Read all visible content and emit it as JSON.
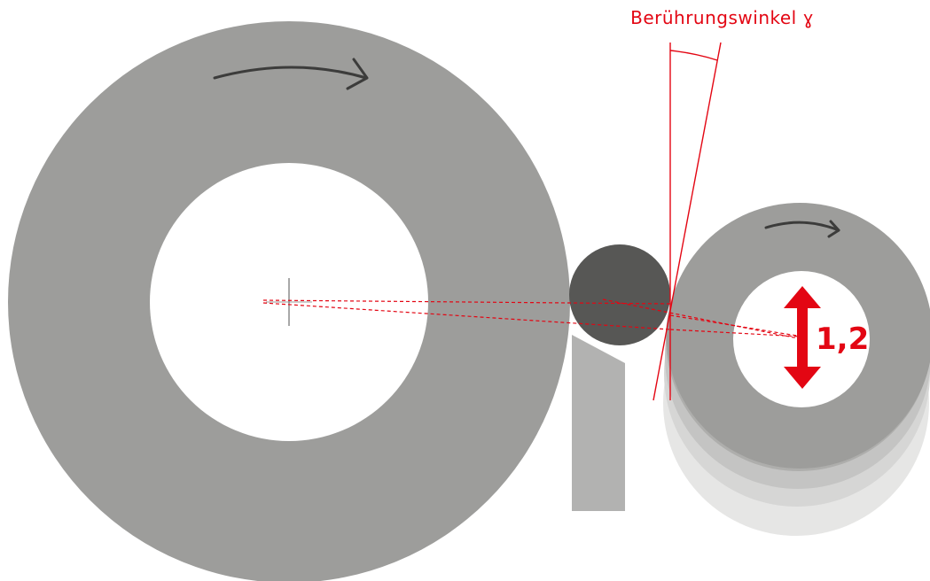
{
  "labels": {
    "contact_angle": "Berührungswinkel ɣ",
    "height_value": "1,2"
  },
  "colors": {
    "wheel_gray": "#9d9d9b",
    "workpiece_dark": "#575755",
    "blade_gray": "#b2b2b1",
    "accent_red": "#e30613",
    "arrow_dark": "#3c3c3b",
    "ghost_1": "#aeaeac",
    "ghost_2": "#c4c4c3",
    "ghost_3": "#d6d6d5",
    "ghost_4": "#e6e6e5"
  },
  "icons": {
    "grinding_wheel_rotation": "curved-arrow-right",
    "regulating_wheel_rotation": "curved-arrow-right",
    "height_adjustment": "double-headed-vertical-arrow"
  }
}
